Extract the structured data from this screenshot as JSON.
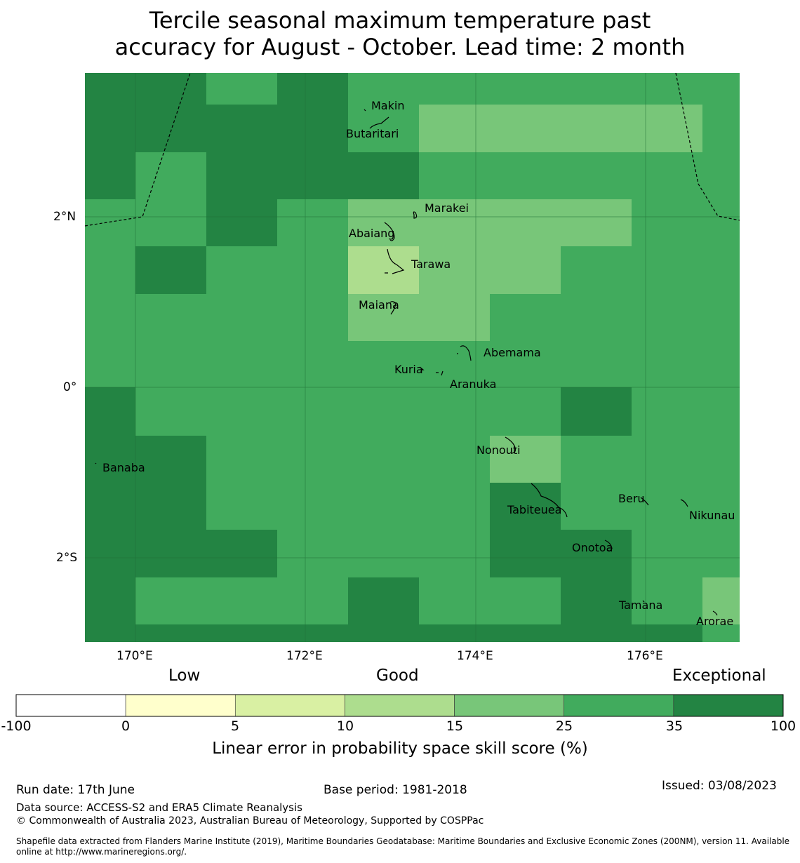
{
  "title_lines": [
    "Tercile seasonal maximum temperature past",
    "accuracy for August - October. Lead time: 2 month"
  ],
  "map": {
    "lat_labels": [
      "2°N",
      "0°",
      "2°S"
    ],
    "lon_labels": [
      "170°E",
      "172°E",
      "174°E",
      "176°E"
    ],
    "places": [
      "Makin",
      "Butaritari",
      "Marakei",
      "Abaiang",
      "Tarawa",
      "Maiana",
      "Abemama",
      "Kuria",
      "Aranuka",
      "Nonouti",
      "Banaba",
      "Beru",
      "Tabiteuea",
      "Nikunau",
      "Onotoa",
      "Tamana",
      "Arorae"
    ],
    "skill_category_grid": [
      [
        5,
        5,
        5,
        5,
        4,
        4,
        5,
        4,
        4,
        4,
        4,
        4,
        4,
        4,
        4,
        4,
        4,
        4
      ],
      [
        5,
        5,
        5,
        5,
        4,
        4,
        5,
        4,
        4,
        4,
        4,
        4,
        4,
        4,
        4,
        4,
        4,
        4
      ],
      [
        5,
        5,
        5,
        5,
        5,
        5,
        5,
        4,
        4,
        4,
        3,
        3,
        3,
        3,
        3,
        3,
        3,
        4
      ],
      [
        5,
        5,
        4,
        4,
        5,
        5,
        5,
        5,
        5,
        5,
        4,
        4,
        4,
        4,
        4,
        4,
        4,
        3
      ],
      [
        5,
        5,
        4,
        4,
        5,
        5,
        5,
        5,
        5,
        5,
        4,
        4,
        4,
        4,
        4,
        4,
        4,
        4
      ],
      [
        5,
        5,
        4,
        4,
        5,
        5,
        5,
        5,
        4,
        4,
        4,
        4,
        4,
        4,
        4,
        4,
        4,
        4
      ],
      [
        4,
        4,
        4,
        4,
        5,
        5,
        4,
        4,
        3,
        3,
        3,
        3,
        3,
        3,
        3,
        3,
        4,
        4
      ],
      [
        4,
        4,
        4,
        4,
        5,
        5,
        4,
        4,
        3,
        3,
        3,
        3,
        3,
        3,
        3,
        3,
        4,
        4
      ],
      [
        4,
        5,
        5,
        4,
        4,
        4,
        4,
        4,
        2,
        2,
        3,
        3,
        3,
        3,
        4,
        4,
        4,
        4
      ],
      [
        4,
        5,
        5,
        4,
        4,
        4,
        4,
        4,
        2,
        2,
        3,
        3,
        3,
        3,
        4,
        4,
        4,
        4
      ],
      [
        4,
        4,
        4,
        4,
        4,
        4,
        4,
        4,
        3,
        3,
        3,
        3,
        4,
        4,
        4,
        4,
        4,
        4
      ],
      [
        4,
        4,
        4,
        4,
        4,
        4,
        4,
        4,
        3,
        3,
        3,
        3,
        4,
        4,
        4,
        4,
        4,
        4
      ],
      [
        4,
        4,
        4,
        4,
        4,
        4,
        4,
        4,
        4,
        4,
        4,
        4,
        4,
        4,
        4,
        4,
        4,
        4
      ],
      [
        4,
        4,
        4,
        4,
        4,
        4,
        4,
        4,
        4,
        4,
        4,
        4,
        4,
        4,
        4,
        4,
        4,
        4
      ],
      [
        5,
        5,
        4,
        4,
        4,
        4,
        4,
        4,
        4,
        4,
        4,
        4,
        4,
        4,
        5,
        5,
        4,
        4
      ],
      [
        5,
        5,
        4,
        4,
        4,
        4,
        4,
        4,
        4,
        4,
        4,
        4,
        4,
        4,
        5,
        5,
        4,
        4
      ],
      [
        5,
        5,
        5,
        5,
        4,
        4,
        4,
        4,
        4,
        4,
        4,
        4,
        3,
        3,
        4,
        4,
        4,
        4
      ],
      [
        5,
        5,
        5,
        5,
        4,
        4,
        4,
        4,
        4,
        4,
        4,
        4,
        3,
        3,
        4,
        4,
        4,
        4
      ],
      [
        5,
        5,
        5,
        5,
        4,
        4,
        4,
        4,
        4,
        4,
        4,
        4,
        5,
        5,
        4,
        4,
        4,
        4
      ],
      [
        5,
        5,
        5,
        5,
        4,
        4,
        4,
        4,
        4,
        4,
        4,
        4,
        5,
        5,
        4,
        4,
        4,
        4
      ],
      [
        5,
        5,
        5,
        5,
        5,
        5,
        4,
        4,
        4,
        4,
        4,
        4,
        5,
        5,
        5,
        5,
        4,
        4
      ],
      [
        5,
        5,
        5,
        5,
        5,
        5,
        4,
        4,
        4,
        4,
        4,
        4,
        5,
        5,
        5,
        5,
        4,
        4
      ],
      [
        5,
        5,
        4,
        4,
        4,
        4,
        4,
        4,
        5,
        5,
        4,
        4,
        4,
        4,
        5,
        5,
        4,
        4,
        3
      ],
      [
        5,
        5,
        4,
        4,
        4,
        4,
        4,
        4,
        5,
        5,
        4,
        4,
        4,
        4,
        5,
        5,
        4,
        4,
        3
      ],
      [
        5,
        5,
        5,
        5,
        5,
        5,
        5,
        5,
        5,
        5,
        5,
        5,
        5,
        5,
        5,
        5,
        5,
        4
      ]
    ],
    "colors": {
      "cat0": "#ffffff",
      "cat1": "#fefccf",
      "cat2": "#d9efa1",
      "cat3": "#addd8e",
      "cat4": "#78c679",
      "cat5": "#41ab5d",
      "cat6": "#238443"
    }
  },
  "colorbar": {
    "top_labels": [
      "Low",
      "Good",
      "Exceptional"
    ],
    "ticks": [
      "-100",
      "0",
      "5",
      "10",
      "15",
      "25",
      "35",
      "100"
    ],
    "colors": [
      "#ffffff",
      "#ffffcc",
      "#d9f0a3",
      "#addd8e",
      "#78c679",
      "#41ab5d",
      "#238443"
    ],
    "label": "Linear error in probability space skill score (%)"
  },
  "footer": {
    "run_date": "Run date: 17th June",
    "base_period": "Base period: 1981-2018",
    "issued": "Issued: 03/08/2023",
    "data_source": "Data source: ACCESS-S2 and ERA5 Climate Reanalysis",
    "copyright": "© Commonwealth of Australia 2023, Australian Bureau of Meteorology, Supported by COSPPac",
    "shapefile_note": "Shapefile data extracted from Flanders Marine Institute (2019), Maritime Boundaries Geodatabase: Maritime Boundaries and Exclusive Economic Zones (200NM), version 11. Available online at http://www.marineregions.org/."
  }
}
